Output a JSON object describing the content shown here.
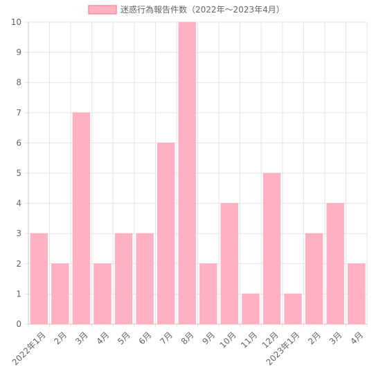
{
  "chart_data": {
    "type": "bar",
    "legend": "迷惑行為報告件数（2022年～2023年4月）",
    "categories": [
      "2022年1月",
      "2月",
      "3月",
      "4月",
      "5月",
      "6月",
      "7月",
      "8月",
      "9月",
      "10月",
      "11月",
      "12月",
      "2023年1月",
      "2月",
      "3月",
      "4月"
    ],
    "series": [
      {
        "name": "迷惑行為報告件数（2022年～2023年4月）",
        "values": [
          3,
          2,
          7,
          2,
          3,
          3,
          6,
          10,
          2,
          4,
          1,
          5,
          1,
          3,
          4,
          2
        ]
      }
    ],
    "ylim": [
      0,
      10
    ],
    "yticks": [
      "0",
      "1",
      "2",
      "3",
      "4",
      "5",
      "6",
      "7",
      "8",
      "9",
      "10"
    ],
    "grid": true,
    "legend_position": "top-center",
    "colors": {
      "bar_fill": "#FFB1C1",
      "bar_stroke": "#FFB1C1",
      "grid": "#e5e5e5",
      "axis": "#c8c8c8"
    }
  }
}
